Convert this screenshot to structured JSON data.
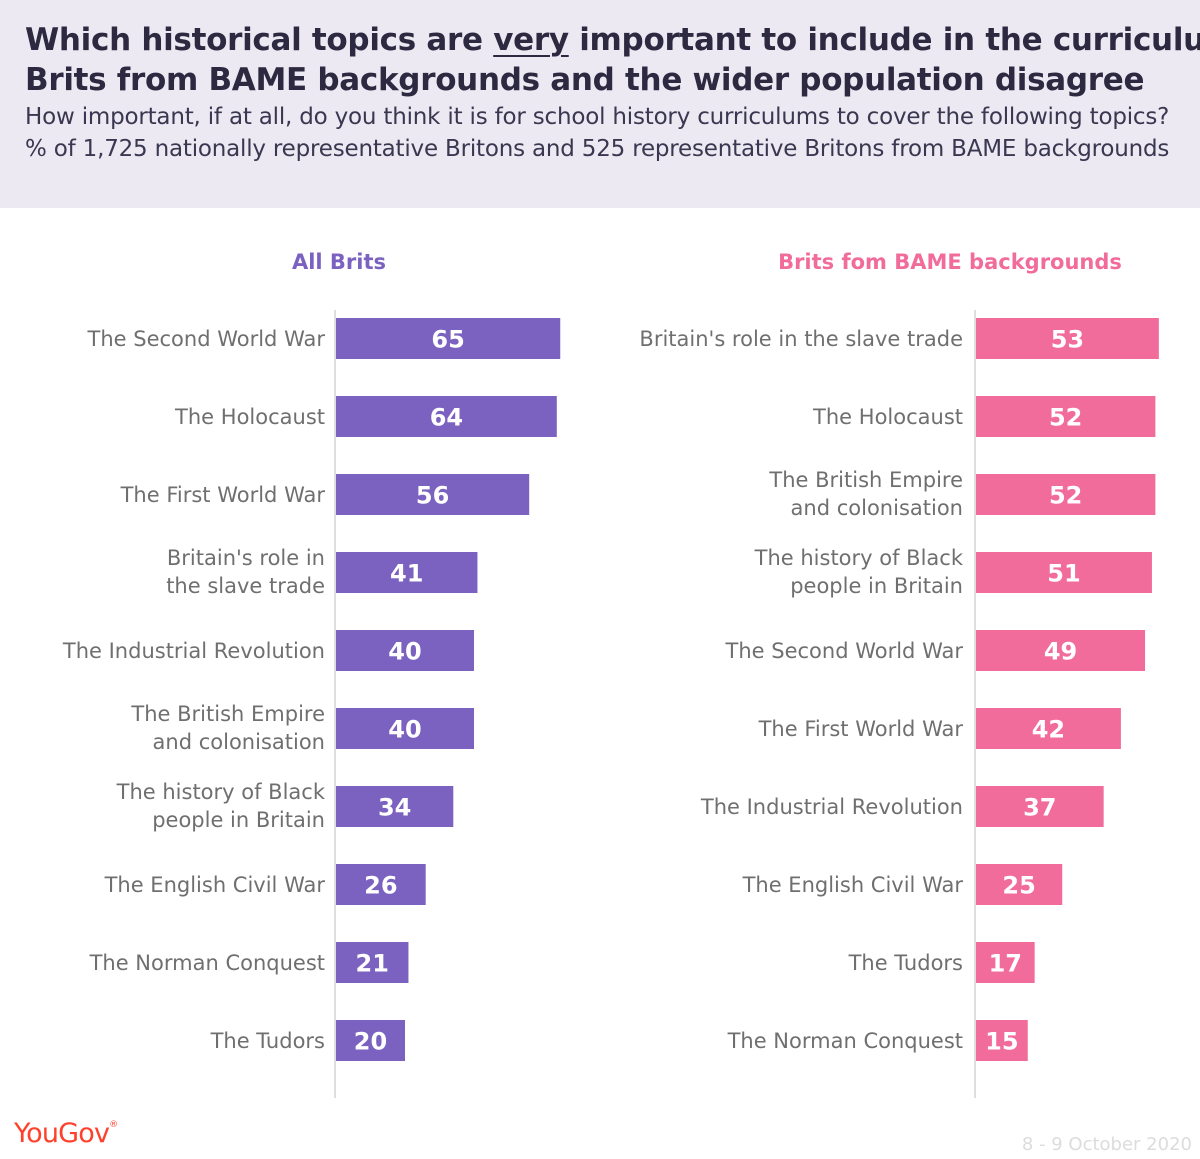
{
  "title": {
    "line1_pre": "Which historical topics are ",
    "line1_emph": "very",
    "line1_post": " important to include in the curriculum?",
    "line2": "Brits from BAME backgrounds and the wider population disagree"
  },
  "subtitle": "How important, if at all, do you think it is for school history curriculums to cover the following topics? % of 1,725 nationally representative Britons and 525 representative Britons from BAME backgrounds",
  "footer": {
    "logo": "YouGov",
    "date": "8 - 9 October 2020"
  },
  "colors": {
    "all_brits": "#7b62c0",
    "bame": "#f16c9a",
    "header_bg": "#ece9f3",
    "logo": "#ff412c"
  },
  "chart_data": [
    {
      "type": "bar",
      "orientation": "horizontal",
      "title": "All Brits",
      "color": "#7b62c0",
      "categories": [
        [
          "The Second World War"
        ],
        [
          "The Holocaust"
        ],
        [
          "The First World War"
        ],
        [
          "Britain's role in",
          "the slave trade"
        ],
        [
          "The Industrial Revolution"
        ],
        [
          "The British Empire",
          "and colonisation"
        ],
        [
          "The history of Black",
          "people in Britain"
        ],
        [
          "The English Civil War"
        ],
        [
          "The Norman Conquest"
        ],
        [
          "The Tudors"
        ]
      ],
      "values": [
        65,
        64,
        56,
        41,
        40,
        40,
        34,
        26,
        21,
        20
      ]
    },
    {
      "type": "bar",
      "orientation": "horizontal",
      "title": "Brits fom BAME backgrounds",
      "color": "#f16c9a",
      "categories": [
        [
          "Britain's role in the slave trade"
        ],
        [
          "The Holocaust"
        ],
        [
          "The British Empire",
          "and colonisation"
        ],
        [
          "The history of Black",
          "people in Britain"
        ],
        [
          "The Second World War"
        ],
        [
          "The First World War"
        ],
        [
          "The Industrial Revolution"
        ],
        [
          "The English Civil War"
        ],
        [
          "The Tudors"
        ],
        [
          "The Norman Conquest"
        ]
      ],
      "values": [
        53,
        52,
        52,
        51,
        49,
        42,
        37,
        25,
        17,
        15
      ]
    }
  ]
}
